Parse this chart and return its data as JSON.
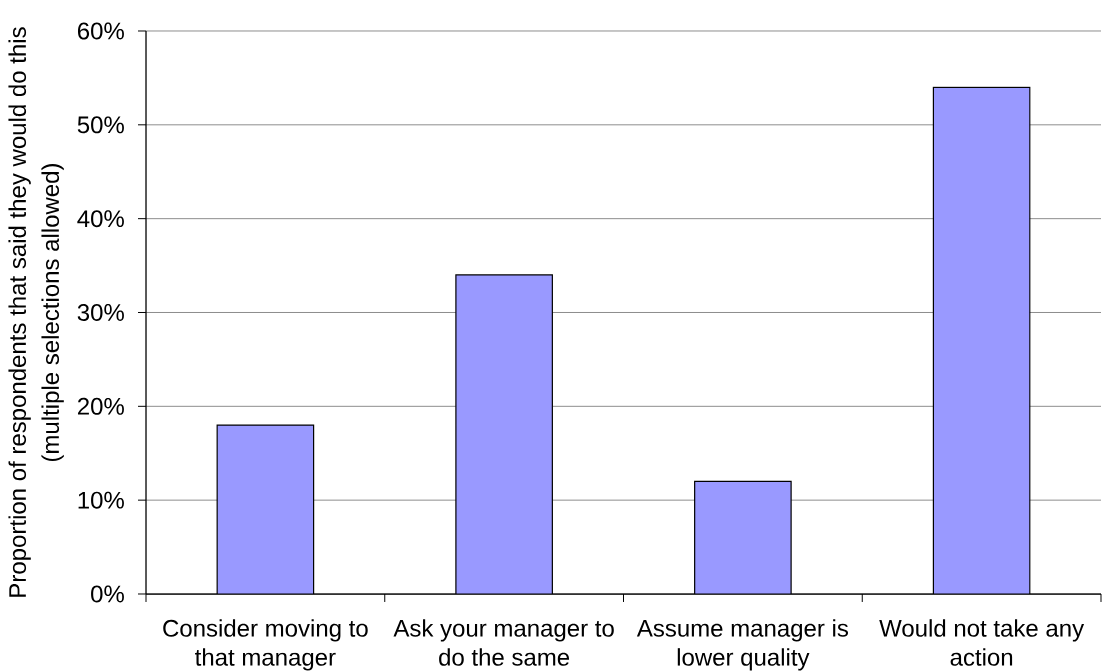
{
  "chart_data": {
    "type": "bar",
    "ylabel": "Proportion of respondents that said they would do this (multiple selections allowed)",
    "categories": [
      "Consider moving to that manager",
      "Ask your manager to do the same",
      "Assume manager is lower quality",
      "Would not take any action"
    ],
    "values": [
      18,
      34,
      12,
      54
    ],
    "color": "#9999ff",
    "ylim": [
      0,
      60
    ],
    "yticks": [
      {
        "value": 0,
        "label": "0%"
      },
      {
        "value": 10,
        "label": "10%"
      },
      {
        "value": 20,
        "label": "20%"
      },
      {
        "value": 30,
        "label": "30%"
      },
      {
        "value": 40,
        "label": "40%"
      },
      {
        "value": 50,
        "label": "50%"
      },
      {
        "value": 60,
        "label": "60%"
      }
    ],
    "grid": "y"
  }
}
